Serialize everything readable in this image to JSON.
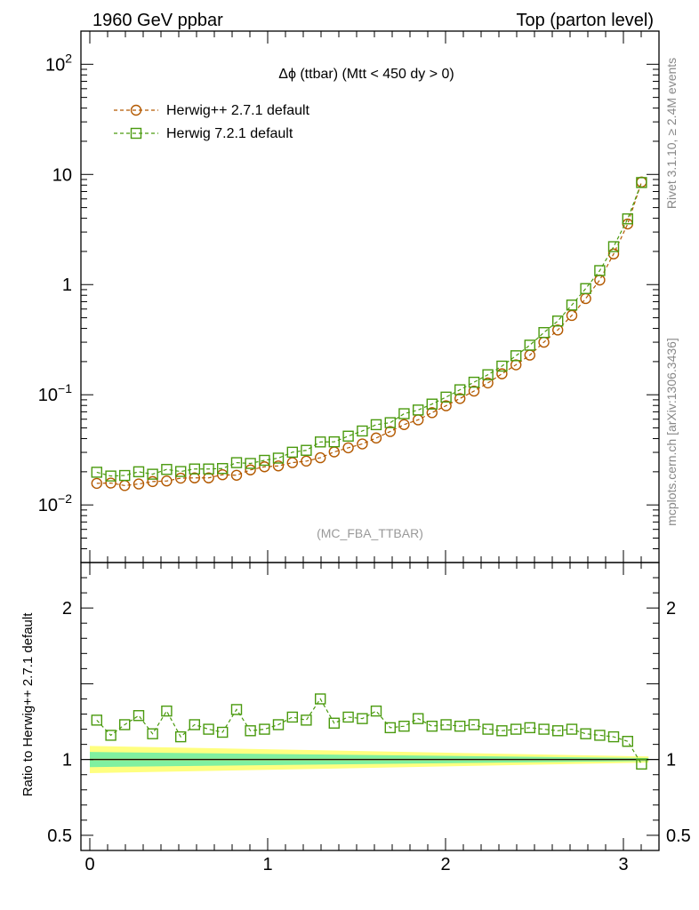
{
  "header": {
    "left": "1960 GeV ppbar",
    "right": "Top (parton level)"
  },
  "side": {
    "rivet": "Rivet 3.1.10, ≥ 2.4M events",
    "mcplots": "mcplots.cern.ch [arXiv:1306.3436]"
  },
  "chart_data": [
    {
      "type": "line",
      "title": "Δϕ (ttbar) (Mtt < 450 dy > 0)",
      "annotation": "(MC_FBA_TTBAR)",
      "xlabel": "",
      "ylabel": "",
      "yscale": "log",
      "xlim": [
        -0.05,
        3.2
      ],
      "ylim": [
        0.003,
        200
      ],
      "ytick_labels": {
        "major": [
          "10^-2",
          "10^-1",
          "1",
          "10",
          "10^2"
        ]
      },
      "x_tick_labels": [
        "0",
        "1",
        "2",
        "3"
      ],
      "legend": "top-left",
      "x": [
        0.039,
        0.118,
        0.196,
        0.275,
        0.353,
        0.432,
        0.511,
        0.589,
        0.668,
        0.746,
        0.825,
        0.903,
        0.982,
        1.06,
        1.139,
        1.217,
        1.296,
        1.374,
        1.453,
        1.532,
        1.61,
        1.689,
        1.767,
        1.846,
        1.924,
        2.003,
        2.081,
        2.16,
        2.238,
        2.317,
        2.396,
        2.474,
        2.553,
        2.631,
        2.71,
        2.788,
        2.867,
        2.945,
        3.024,
        3.102
      ],
      "series": [
        {
          "name": "Herwig++ 2.7.1 default",
          "color": "#b35900",
          "marker": "circle",
          "values": [
            0.0157,
            0.0158,
            0.015,
            0.0155,
            0.0163,
            0.0165,
            0.0175,
            0.0176,
            0.0176,
            0.0188,
            0.0186,
            0.0208,
            0.0222,
            0.0226,
            0.0242,
            0.025,
            0.0268,
            0.0303,
            0.033,
            0.0358,
            0.0405,
            0.0464,
            0.0536,
            0.0592,
            0.0688,
            0.0795,
            0.0925,
            0.108,
            0.128,
            0.155,
            0.187,
            0.229,
            0.3,
            0.387,
            0.525,
            0.747,
            1.1,
            1.9,
            3.55,
            8.53
          ]
        },
        {
          "name": "Herwig 7.2.1 default",
          "color": "#4a9a0e",
          "marker": "square",
          "values": [
            0.0198,
            0.0183,
            0.0185,
            0.02,
            0.019,
            0.021,
            0.0201,
            0.0212,
            0.0212,
            0.0214,
            0.0242,
            0.0238,
            0.0254,
            0.0266,
            0.0301,
            0.0313,
            0.0373,
            0.0374,
            0.0421,
            0.0469,
            0.0535,
            0.0558,
            0.0673,
            0.0727,
            0.0823,
            0.0952,
            0.111,
            0.13,
            0.152,
            0.182,
            0.226,
            0.282,
            0.367,
            0.467,
            0.652,
            0.92,
            1.34,
            2.21,
            3.95,
            8.44
          ]
        }
      ]
    },
    {
      "type": "line",
      "ylabel": "Ratio to Herwig++ 2.7.1 default",
      "ylim": [
        0.4,
        2.3
      ],
      "y_tick_labels": [
        "0.5",
        "1",
        "2"
      ],
      "x": [
        0.039,
        0.118,
        0.196,
        0.275,
        0.353,
        0.432,
        0.511,
        0.589,
        0.668,
        0.746,
        0.825,
        0.903,
        0.982,
        1.06,
        1.139,
        1.217,
        1.296,
        1.374,
        1.453,
        1.532,
        1.61,
        1.689,
        1.767,
        1.846,
        1.924,
        2.003,
        2.081,
        2.16,
        2.238,
        2.317,
        2.396,
        2.474,
        2.553,
        2.631,
        2.71,
        2.788,
        2.867,
        2.945,
        3.024,
        3.102
      ],
      "series": [
        {
          "name": "Herwig 7.2.1 default",
          "color": "#4a9a0e",
          "marker": "square",
          "values": [
            1.26,
            1.16,
            1.23,
            1.29,
            1.17,
            1.32,
            1.15,
            1.23,
            1.2,
            1.18,
            1.33,
            1.19,
            1.2,
            1.23,
            1.28,
            1.26,
            1.4,
            1.24,
            1.28,
            1.27,
            1.32,
            1.21,
            1.22,
            1.27,
            1.22,
            1.23,
            1.22,
            1.23,
            1.2,
            1.19,
            1.2,
            1.21,
            1.2,
            1.19,
            1.2,
            1.17,
            1.16,
            1.15,
            1.12,
            0.97
          ]
        }
      ],
      "bands": {
        "inner_color": "#80f0a0",
        "outer_color": "#ffff80",
        "inner_halfwidth_start": 0.05,
        "inner_halfwidth_end": 0.01,
        "outer_halfwidth_start": 0.09,
        "outer_halfwidth_end": 0.02
      }
    }
  ]
}
